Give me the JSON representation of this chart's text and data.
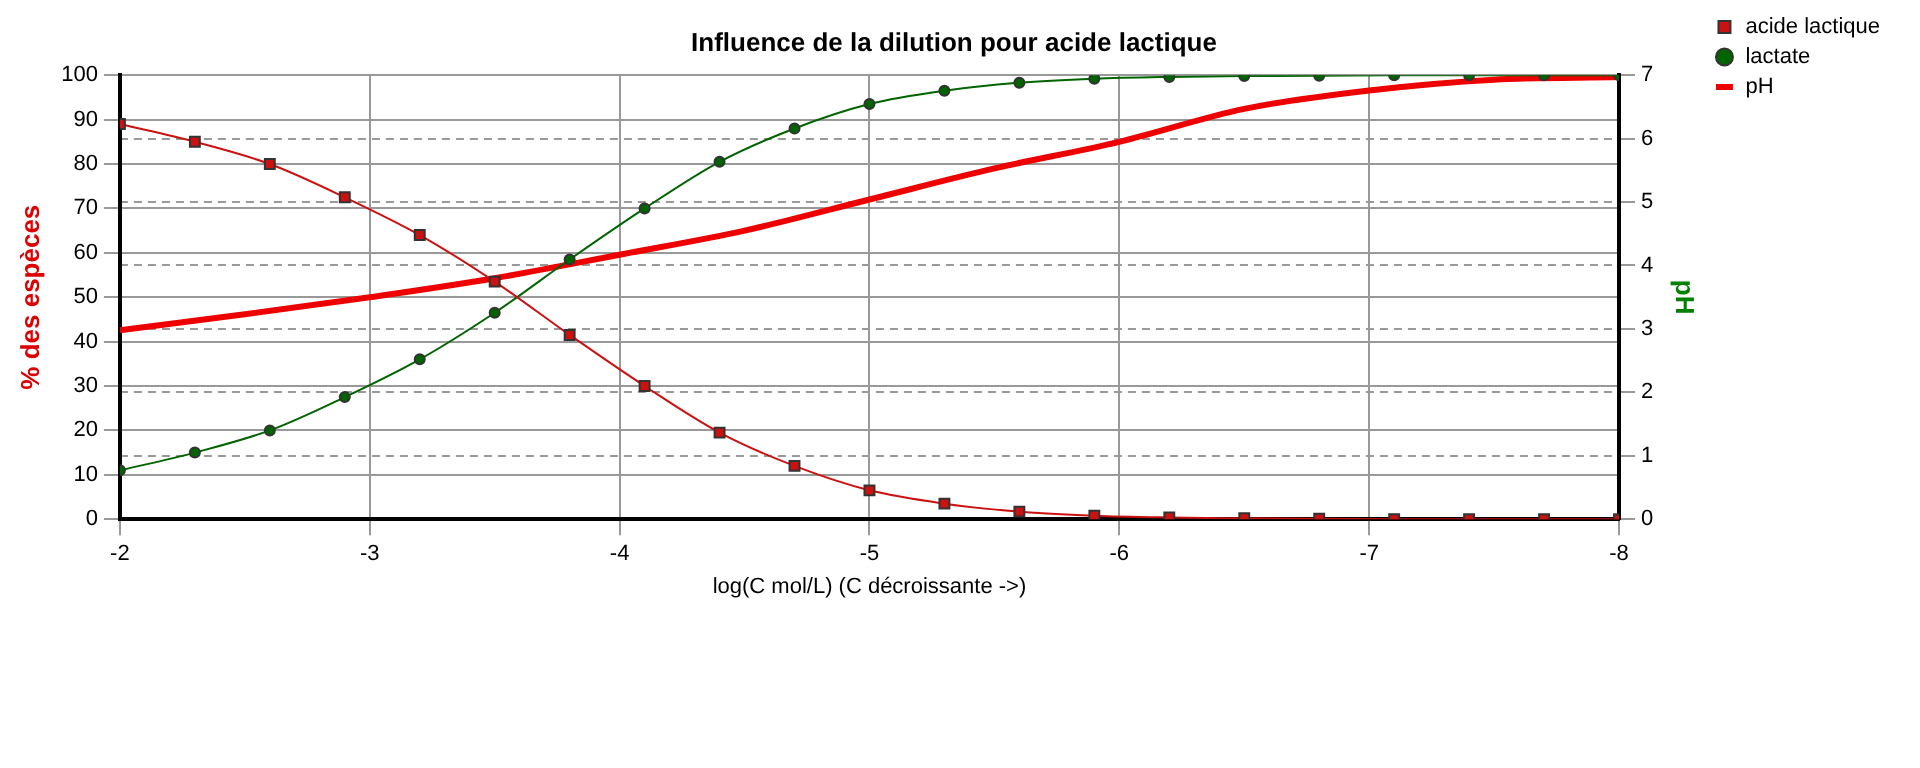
{
  "chart_data": {
    "type": "line",
    "title": "Influence de la dilution pour acide lactique",
    "xlabel": "log(C mol/L) (C décroissante ->)",
    "ylabel": "% des espèces",
    "y2label": "pH",
    "x": [
      -2,
      -2.3,
      -2.6,
      -2.9,
      -3.2,
      -3.5,
      -3.8,
      -4.1,
      -4.4,
      -4.7,
      -5,
      -5.3,
      -5.6,
      -5.9,
      -6.2,
      -6.5,
      -6.8,
      -7.1,
      -7.4,
      -7.7,
      -8
    ],
    "series": [
      {
        "name": "acide lactique",
        "color": "#cc1111",
        "marker": "square",
        "values": [
          89,
          85,
          80,
          72.5,
          64,
          53.5,
          41.5,
          30,
          19.5,
          12,
          6.5,
          3.5,
          1.7,
          0.8,
          0.4,
          0.2,
          0.1,
          0,
          0,
          0,
          0
        ]
      },
      {
        "name": "lactate",
        "color": "#006400",
        "marker": "circle",
        "values": [
          11,
          15,
          20,
          27.5,
          36,
          46.5,
          58.5,
          70,
          80.5,
          88,
          93.5,
          96.5,
          98.3,
          99.2,
          99.6,
          99.8,
          99.9,
          100,
          100,
          100,
          100
        ]
      },
      {
        "name": "pH",
        "color": "#ee0000",
        "marker": "none",
        "axis": "y2",
        "x": [
          -2,
          -2.5,
          -3,
          -3.5,
          -4,
          -4.5,
          -5,
          -5.5,
          -6,
          -6.5,
          -7,
          -7.5,
          -8
        ],
        "values": [
          2.98,
          3.23,
          3.5,
          3.8,
          4.17,
          4.55,
          5.04,
          5.53,
          5.95,
          6.47,
          6.76,
          6.93,
          6.97
        ]
      }
    ],
    "xlim": [
      -2,
      -8
    ],
    "xticks": [
      -2,
      -3,
      -4,
      -5,
      -6,
      -7,
      -8
    ],
    "ylim": [
      0,
      100
    ],
    "yticks": [
      0,
      10,
      20,
      30,
      40,
      50,
      60,
      70,
      80,
      90,
      100
    ],
    "y2lim": [
      0,
      7
    ],
    "y2ticks": [
      0,
      1,
      2,
      3,
      4,
      5,
      6,
      7
    ],
    "grid": true,
    "legend": "top right"
  }
}
